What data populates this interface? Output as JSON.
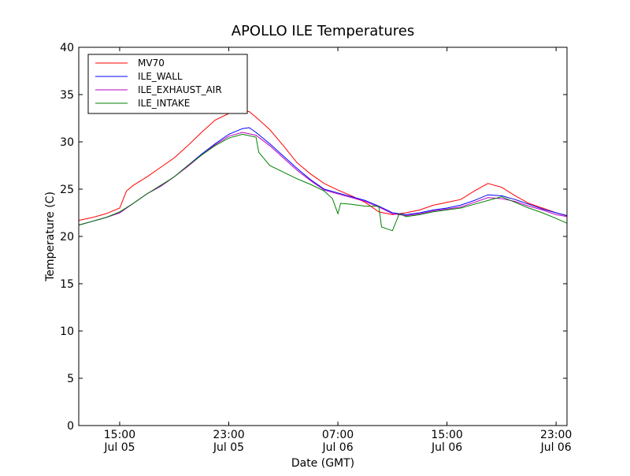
{
  "chart_data": {
    "type": "line",
    "title": "APOLLO ILE Temperatures",
    "xlabel": "Date (GMT)",
    "ylabel": "Temperature (C)",
    "x_unit": "hours since Jul 05 12:00 GMT",
    "xlim": [
      0,
      35.8
    ],
    "ylim": [
      0,
      40
    ],
    "grid": false,
    "legend_position": "top-left",
    "y_ticks": [
      0,
      5,
      10,
      15,
      20,
      25,
      30,
      35,
      40
    ],
    "x_ticks": [
      {
        "x": 3,
        "time": "15:00",
        "date": "Jul 05"
      },
      {
        "x": 11,
        "time": "23:00",
        "date": "Jul 05"
      },
      {
        "x": 19,
        "time": "07:00",
        "date": "Jul 06"
      },
      {
        "x": 27,
        "time": "15:00",
        "date": "Jul 06"
      },
      {
        "x": 35,
        "time": "23:00",
        "date": "Jul 06"
      }
    ],
    "series": [
      {
        "name": "MV70",
        "color": "#ff0000",
        "x": [
          0,
          1,
          2,
          3,
          3.5,
          4,
          5,
          6,
          7,
          8,
          9,
          10,
          11,
          12,
          12.5,
          13,
          14,
          15,
          16,
          17,
          18,
          19,
          20,
          21,
          22,
          23,
          24,
          25,
          26,
          27,
          28,
          29,
          30,
          31,
          32,
          33,
          34,
          35,
          35.8
        ],
        "y": [
          21.7,
          22.0,
          22.4,
          23.0,
          24.8,
          25.4,
          26.3,
          27.3,
          28.3,
          29.6,
          31.0,
          32.3,
          33.0,
          33.3,
          33.2,
          32.6,
          31.3,
          29.6,
          27.8,
          26.6,
          25.6,
          24.9,
          24.3,
          23.6,
          22.6,
          22.3,
          22.5,
          22.8,
          23.3,
          23.6,
          23.9,
          24.8,
          25.6,
          25.2,
          24.3,
          23.5,
          23.0,
          22.5,
          22.2
        ]
      },
      {
        "name": "ILE_WALL",
        "color": "#0000ff",
        "x": [
          0,
          1,
          2,
          3,
          4,
          5,
          6,
          7,
          8,
          9,
          10,
          11,
          12,
          12.5,
          13,
          14,
          15,
          16,
          17,
          18,
          19,
          20,
          21,
          22,
          23,
          24,
          25,
          26,
          27,
          28,
          29,
          30,
          31,
          32,
          33,
          34,
          35,
          35.8
        ],
        "y": [
          21.2,
          21.6,
          22.0,
          22.5,
          23.5,
          24.5,
          25.3,
          26.3,
          27.5,
          28.7,
          29.8,
          30.8,
          31.4,
          31.5,
          31.0,
          29.8,
          28.5,
          27.2,
          26.0,
          25.0,
          24.6,
          24.2,
          23.8,
          23.2,
          22.5,
          22.3,
          22.5,
          22.8,
          23.0,
          23.3,
          23.8,
          24.4,
          24.3,
          23.9,
          23.4,
          22.9,
          22.5,
          22.2
        ]
      },
      {
        "name": "ILE_EXHAUST_AIR",
        "color": "#bf00bf",
        "x": [
          0,
          1,
          2,
          3,
          4,
          5,
          6,
          7,
          8,
          9,
          10,
          11,
          12,
          13,
          14,
          15,
          16,
          17,
          18,
          19,
          20,
          21,
          22,
          23,
          24,
          25,
          26,
          27,
          28,
          29,
          30,
          31,
          32,
          33,
          34,
          35,
          35.8
        ],
        "y": [
          21.2,
          21.6,
          22.0,
          22.5,
          23.5,
          24.5,
          25.3,
          26.3,
          27.4,
          28.6,
          29.7,
          30.6,
          31.0,
          30.7,
          29.6,
          28.3,
          27.0,
          25.9,
          24.9,
          24.5,
          24.1,
          23.7,
          23.1,
          22.4,
          22.2,
          22.4,
          22.7,
          22.9,
          23.1,
          23.6,
          24.1,
          24.0,
          23.7,
          23.2,
          22.8,
          22.3,
          22.1
        ]
      },
      {
        "name": "ILE_INTAKE",
        "color": "#008000",
        "x": [
          0,
          1,
          2,
          3,
          4,
          5,
          6,
          7,
          8,
          9,
          10,
          11,
          12,
          13,
          13.2,
          14,
          15,
          16,
          17,
          18,
          18.6,
          19,
          19.2,
          20,
          21,
          22,
          22.2,
          23,
          23.5,
          24,
          25,
          26,
          27,
          28,
          29,
          30,
          31,
          32,
          33,
          34,
          35,
          35.8
        ],
        "y": [
          21.2,
          21.6,
          22.0,
          22.6,
          23.5,
          24.5,
          25.4,
          26.3,
          27.5,
          28.6,
          29.6,
          30.4,
          30.8,
          30.5,
          28.9,
          27.5,
          26.8,
          26.1,
          25.5,
          24.8,
          24.0,
          22.4,
          23.5,
          23.4,
          23.2,
          23.2,
          21.0,
          20.6,
          22.4,
          22.1,
          22.3,
          22.6,
          22.8,
          23.0,
          23.4,
          23.8,
          24.2,
          23.6,
          23.0,
          22.5,
          21.9,
          21.4
        ]
      }
    ]
  }
}
